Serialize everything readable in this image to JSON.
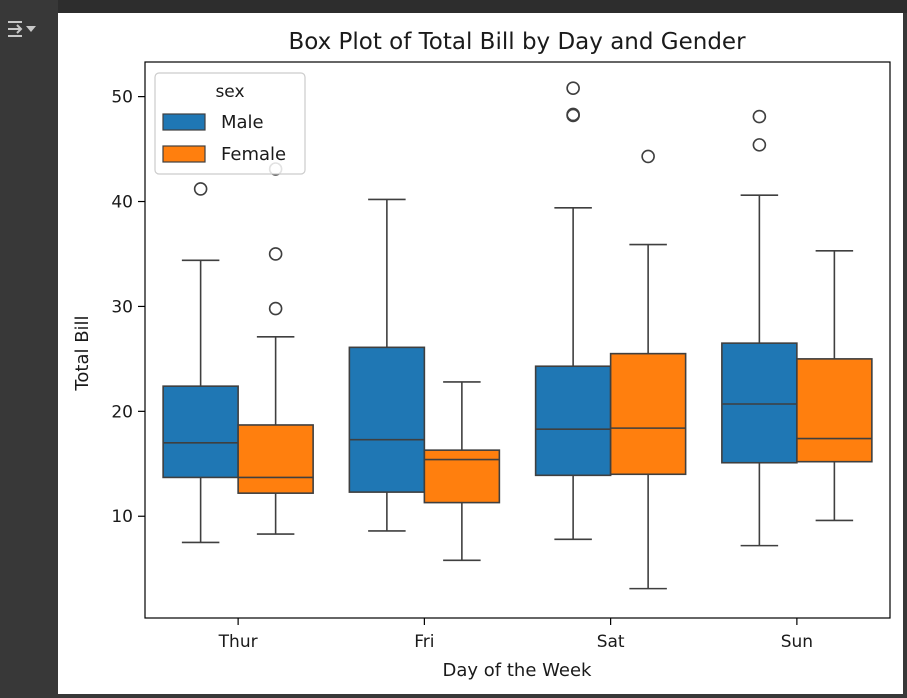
{
  "chart_data": {
    "type": "box",
    "title": "Box Plot of Total Bill by Day and Gender",
    "xlabel": "Day of the Week",
    "ylabel": "Total Bill",
    "categories": [
      "Thur",
      "Fri",
      "Sat",
      "Sun"
    ],
    "ylim": [
      0.3,
      53.3
    ],
    "yticks": [
      10,
      20,
      30,
      40,
      50
    ],
    "grid": false,
    "legend": {
      "title": "sex",
      "position": "top-left"
    },
    "series": [
      {
        "name": "Male",
        "color": "#1f77b4",
        "boxes": [
          {
            "whislo": 7.5,
            "q1": 13.7,
            "med": 17.0,
            "q3": 22.4,
            "whishi": 34.4,
            "fliers": [
              41.2
            ]
          },
          {
            "whislo": 8.6,
            "q1": 12.3,
            "med": 17.3,
            "q3": 26.1,
            "whishi": 40.2,
            "fliers": []
          },
          {
            "whislo": 7.8,
            "q1": 13.9,
            "med": 18.3,
            "q3": 24.3,
            "whishi": 39.4,
            "fliers": [
              48.3,
              48.2,
              50.8
            ]
          },
          {
            "whislo": 7.2,
            "q1": 15.1,
            "med": 20.7,
            "q3": 26.5,
            "whishi": 40.6,
            "fliers": [
              45.4,
              48.1
            ]
          }
        ]
      },
      {
        "name": "Female",
        "color": "#ff7f0e",
        "boxes": [
          {
            "whislo": 8.3,
            "q1": 12.2,
            "med": 13.7,
            "q3": 18.7,
            "whishi": 27.1,
            "fliers": [
              29.8,
              35.0,
              43.1
            ]
          },
          {
            "whislo": 5.8,
            "q1": 11.3,
            "med": 15.4,
            "q3": 16.3,
            "whishi": 22.8,
            "fliers": []
          },
          {
            "whislo": 3.1,
            "q1": 14.0,
            "med": 18.4,
            "q3": 25.5,
            "whishi": 35.9,
            "fliers": [
              44.3
            ]
          },
          {
            "whislo": 9.6,
            "q1": 15.2,
            "med": 17.4,
            "q3": 25.0,
            "whishi": 35.3,
            "fliers": []
          }
        ]
      }
    ]
  },
  "colors": {
    "male": "#1f77b4",
    "female": "#ff7f0e",
    "edge": "#3f3f3f"
  },
  "toolbar": {
    "output_toggle_icon": "output-collapse-icon"
  }
}
